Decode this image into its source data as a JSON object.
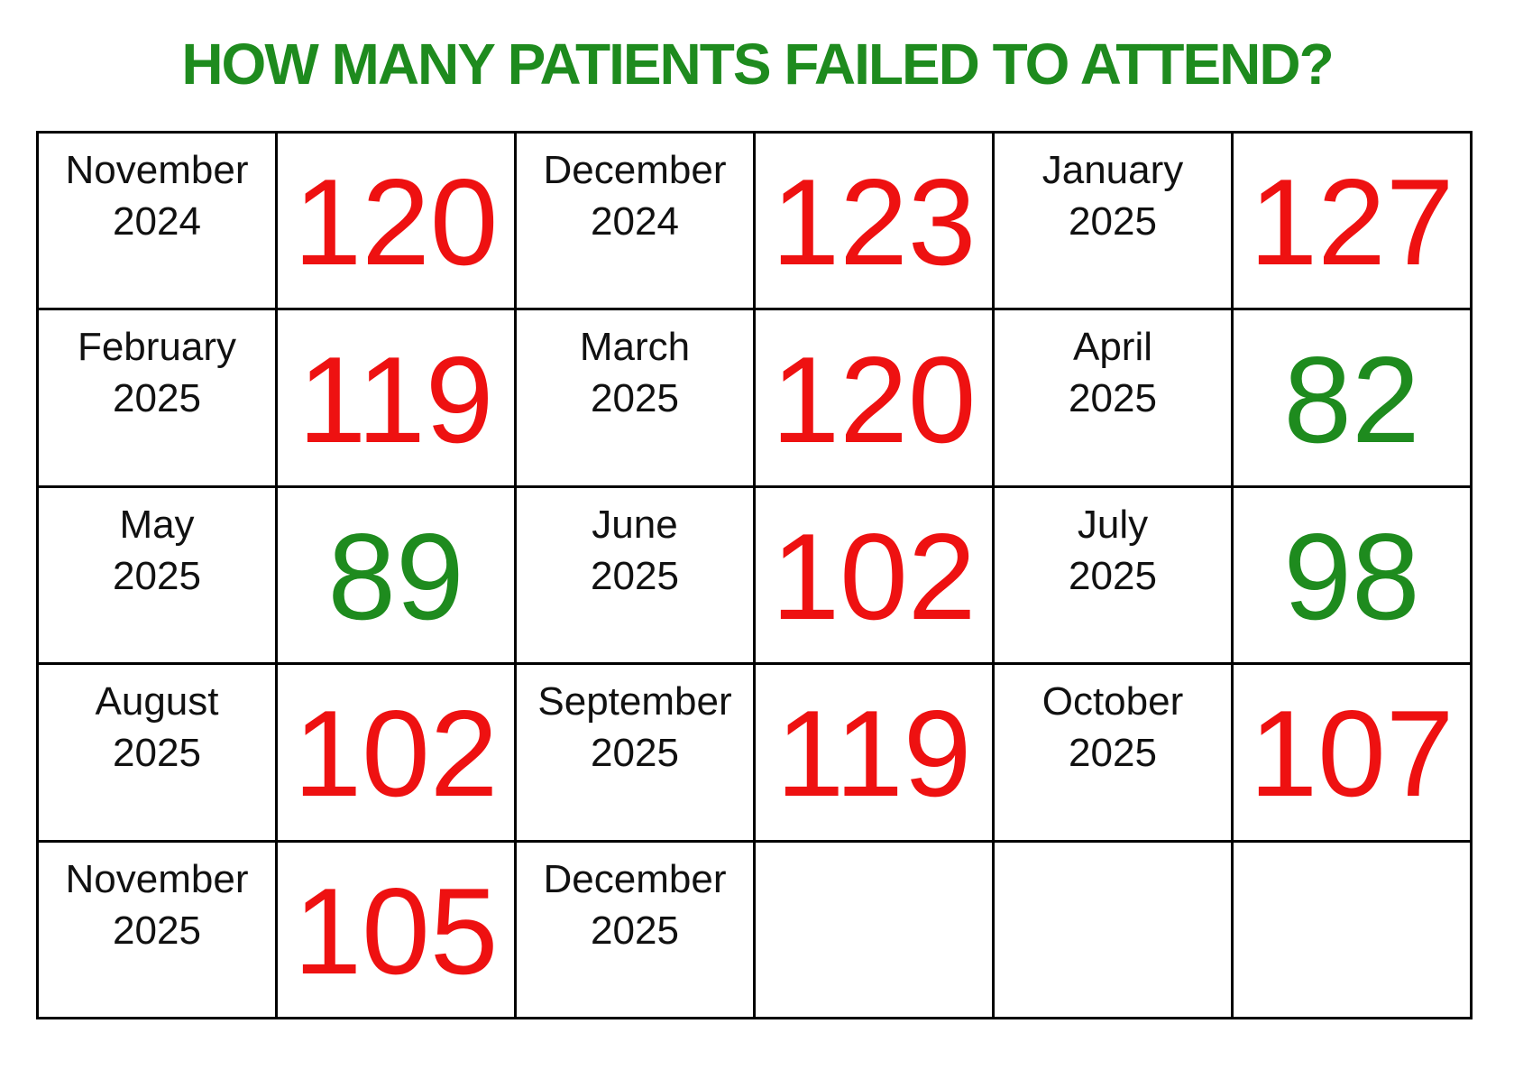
{
  "title": {
    "text": "HOW MANY PATIENTS FAILED TO ATTEND?"
  },
  "colors": {
    "title_green": "#1e8b1e",
    "value_red": "#ee1111",
    "value_green": "#1e8b1e",
    "label_black": "#111111",
    "border_black": "#000000",
    "background": "#ffffff"
  },
  "chart_data": {
    "type": "table",
    "title": "HOW MANY PATIENTS FAILED TO ATTEND?",
    "layout": {
      "rows": 5,
      "month_value_pairs_per_row": 3,
      "grid_on": true
    },
    "cells": [
      {
        "month": "November",
        "year": "2024",
        "value": "120",
        "value_color": "red"
      },
      {
        "month": "December",
        "year": "2024",
        "value": "123",
        "value_color": "red"
      },
      {
        "month": "January",
        "year": "2025",
        "value": "127",
        "value_color": "red"
      },
      {
        "month": "February",
        "year": "2025",
        "value": "119",
        "value_color": "red"
      },
      {
        "month": "March",
        "year": "2025",
        "value": "120",
        "value_color": "red"
      },
      {
        "month": "April",
        "year": "2025",
        "value": "82",
        "value_color": "green"
      },
      {
        "month": "May",
        "year": "2025",
        "value": "89",
        "value_color": "green"
      },
      {
        "month": "June",
        "year": "2025",
        "value": "102",
        "value_color": "red"
      },
      {
        "month": "July",
        "year": "2025",
        "value": "98",
        "value_color": "green"
      },
      {
        "month": "August",
        "year": "2025",
        "value": "102",
        "value_color": "red"
      },
      {
        "month": "September",
        "year": "2025",
        "value": "119",
        "value_color": "red"
      },
      {
        "month": "October",
        "year": "2025",
        "value": "107",
        "value_color": "red"
      },
      {
        "month": "November",
        "year": "2025",
        "value": "105",
        "value_color": "red"
      },
      {
        "month": "December",
        "year": "2025",
        "value": "",
        "value_color": ""
      },
      {
        "month": "",
        "year": "",
        "value": "",
        "value_color": ""
      }
    ]
  }
}
